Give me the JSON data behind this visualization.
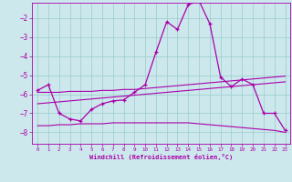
{
  "xlabel": "Windchill (Refroidissement éolien,°C)",
  "background_color": "#cce8ec",
  "line_color": "#aa00aa",
  "grid_color": "#99cccc",
  "xlim": [
    -0.5,
    23.5
  ],
  "ylim": [
    -8.6,
    -1.2
  ],
  "yticks": [
    -8,
    -7,
    -6,
    -5,
    -4,
    -3,
    -2
  ],
  "xticks": [
    0,
    1,
    2,
    3,
    4,
    5,
    6,
    7,
    8,
    9,
    10,
    11,
    12,
    13,
    14,
    15,
    16,
    17,
    18,
    19,
    20,
    21,
    22,
    23
  ],
  "line1_x": [
    0,
    1,
    2,
    3,
    4,
    5,
    6,
    7,
    8,
    9,
    10,
    11,
    12,
    13,
    14,
    15,
    16,
    17,
    18,
    19,
    20,
    21,
    22,
    23
  ],
  "line1_y": [
    -5.8,
    -5.5,
    -7.0,
    -7.3,
    -7.4,
    -6.8,
    -6.5,
    -6.35,
    -6.3,
    -5.9,
    -5.5,
    -3.8,
    -2.2,
    -2.6,
    -1.3,
    -1.1,
    -2.3,
    -5.1,
    -5.6,
    -5.2,
    -5.5,
    -7.0,
    -7.0,
    -7.9
  ],
  "line2_x": [
    0,
    1,
    2,
    3,
    4,
    5,
    6,
    7,
    8,
    9,
    10,
    11,
    12,
    13,
    14,
    15,
    16,
    17,
    18,
    19,
    20,
    21,
    22,
    23
  ],
  "line2_y": [
    -5.9,
    -5.9,
    -5.9,
    -5.85,
    -5.85,
    -5.85,
    -5.8,
    -5.8,
    -5.75,
    -5.75,
    -5.7,
    -5.65,
    -5.6,
    -5.55,
    -5.5,
    -5.45,
    -5.4,
    -5.35,
    -5.3,
    -5.25,
    -5.2,
    -5.15,
    -5.1,
    -5.05
  ],
  "line3_x": [
    0,
    1,
    2,
    3,
    4,
    5,
    6,
    7,
    8,
    9,
    10,
    11,
    12,
    13,
    14,
    15,
    16,
    17,
    18,
    19,
    20,
    21,
    22,
    23
  ],
  "line3_y": [
    -6.5,
    -6.45,
    -6.4,
    -6.35,
    -6.3,
    -6.25,
    -6.2,
    -6.15,
    -6.1,
    -6.05,
    -6.0,
    -5.95,
    -5.9,
    -5.85,
    -5.8,
    -5.75,
    -5.7,
    -5.65,
    -5.6,
    -5.55,
    -5.5,
    -5.45,
    -5.4,
    -5.35
  ],
  "line4_x": [
    0,
    1,
    2,
    3,
    4,
    5,
    6,
    7,
    8,
    9,
    10,
    11,
    12,
    13,
    14,
    15,
    16,
    17,
    18,
    19,
    20,
    21,
    22,
    23
  ],
  "line4_y": [
    -7.65,
    -7.65,
    -7.6,
    -7.6,
    -7.55,
    -7.55,
    -7.55,
    -7.5,
    -7.5,
    -7.5,
    -7.5,
    -7.5,
    -7.5,
    -7.5,
    -7.5,
    -7.55,
    -7.6,
    -7.65,
    -7.7,
    -7.75,
    -7.8,
    -7.85,
    -7.9,
    -8.0
  ]
}
